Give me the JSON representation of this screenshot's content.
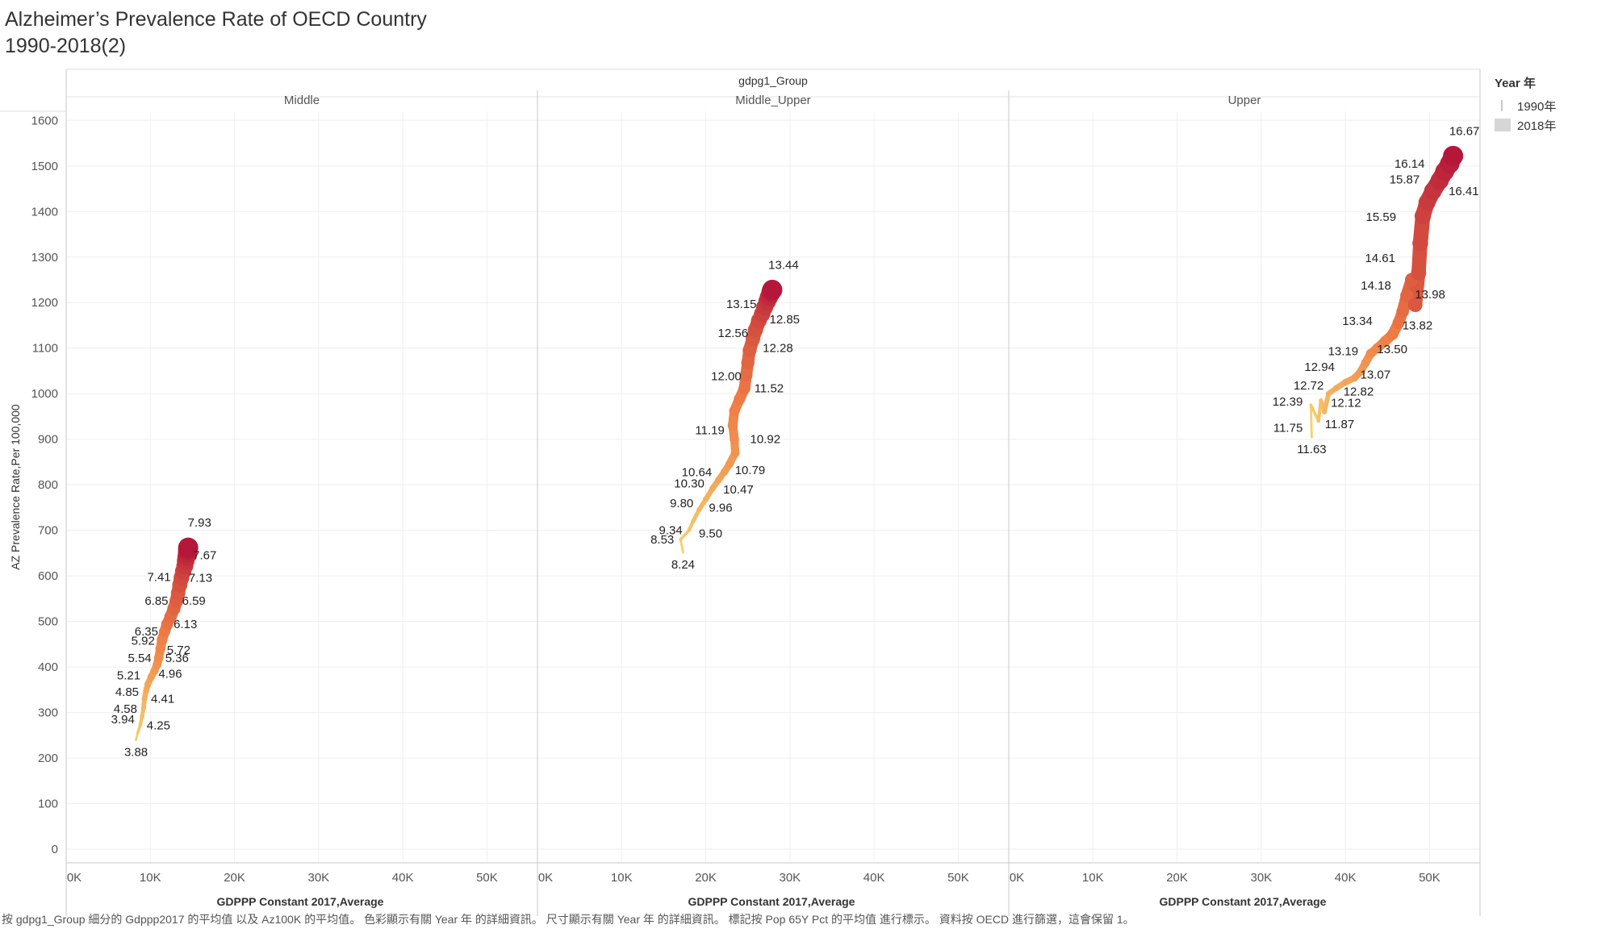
{
  "title_line1": "Alzheimer’s Prevalence Rate of OECD Country",
  "title_line2": "1990-2018(2)",
  "legend": {
    "title": "Year 年",
    "items": [
      "1990年",
      "2018年"
    ]
  },
  "footer": "按 gdpg1_Group 細分的 Gdppp2017 的平均值 以及 Az100K 的平均值。 色彩顯示有關 Year 年 的詳細資訊。 尺寸顯示有關 Year 年 的詳細資訊。 標記按 Pop 65Y Pct 的平均值 進行標示。 資料按 OECD 進行篩選，這會保留 1。",
  "chart_data": {
    "type": "scatter",
    "column_header": "gdpg1_Group",
    "xlabel": "GDPPP Constant 2017,Average",
    "ylabel": "AZ Prevalence Rate,Per 100,000",
    "x_ticks": [
      "0K",
      "10K",
      "20K",
      "30K",
      "40K",
      "50K"
    ],
    "xlim": [
      0,
      56000
    ],
    "y_ticks": [
      0,
      100,
      200,
      300,
      400,
      500,
      600,
      700,
      800,
      900,
      1000,
      1100,
      1200,
      1300,
      1400,
      1500,
      1600
    ],
    "ylim": [
      -30,
      1620
    ],
    "years": [
      1990,
      2018
    ],
    "color_low": "#f5d06f",
    "color_mid": "#ee7a44",
    "color_high": "#b5173a",
    "panels": [
      {
        "name": "Middle",
        "series": [
          {
            "year": 1990,
            "x": 8300,
            "y": 240
          },
          {
            "year": 1991,
            "x": 8500,
            "y": 255
          },
          {
            "year": 1992,
            "x": 8800,
            "y": 272
          },
          {
            "year": 1993,
            "x": 9000,
            "y": 290
          },
          {
            "year": 1994,
            "x": 9200,
            "y": 310
          },
          {
            "year": 1995,
            "x": 9300,
            "y": 330
          },
          {
            "year": 1996,
            "x": 9500,
            "y": 348
          },
          {
            "year": 1997,
            "x": 9700,
            "y": 362
          },
          {
            "year": 1998,
            "x": 10100,
            "y": 378
          },
          {
            "year": 1999,
            "x": 10500,
            "y": 392
          },
          {
            "year": 2000,
            "x": 10800,
            "y": 405
          },
          {
            "year": 2001,
            "x": 11000,
            "y": 420
          },
          {
            "year": 2002,
            "x": 11200,
            "y": 440
          },
          {
            "year": 2003,
            "x": 11400,
            "y": 460
          },
          {
            "year": 2004,
            "x": 11700,
            "y": 478
          },
          {
            "year": 2005,
            "x": 12000,
            "y": 494
          },
          {
            "year": 2006,
            "x": 12400,
            "y": 510
          },
          {
            "year": 2007,
            "x": 12800,
            "y": 528
          },
          {
            "year": 2008,
            "x": 13100,
            "y": 545
          },
          {
            "year": 2009,
            "x": 13300,
            "y": 562
          },
          {
            "year": 2010,
            "x": 13500,
            "y": 580
          },
          {
            "year": 2011,
            "x": 13700,
            "y": 596
          },
          {
            "year": 2012,
            "x": 13900,
            "y": 610
          },
          {
            "year": 2013,
            "x": 14100,
            "y": 622
          },
          {
            "year": 2014,
            "x": 14200,
            "y": 633
          },
          {
            "year": 2015,
            "x": 14300,
            "y": 642
          },
          {
            "year": 2016,
            "x": 14400,
            "y": 650
          },
          {
            "year": 2017,
            "x": 14450,
            "y": 657
          },
          {
            "year": 2018,
            "x": 14500,
            "y": 662
          }
        ],
        "labels": [
          {
            "text": "3.88",
            "x": 8300,
            "y": 240,
            "side": "below"
          },
          {
            "text": "4.25",
            "x": 8800,
            "y": 272,
            "side": "right"
          },
          {
            "text": "3.94",
            "x": 8900,
            "y": 285,
            "side": "left"
          },
          {
            "text": "4.41",
            "x": 9300,
            "y": 330,
            "side": "right"
          },
          {
            "text": "4.58",
            "x": 9200,
            "y": 308,
            "side": "left"
          },
          {
            "text": "4.85",
            "x": 9400,
            "y": 345,
            "side": "left"
          },
          {
            "text": "4.96",
            "x": 10200,
            "y": 385,
            "side": "right"
          },
          {
            "text": "5.21",
            "x": 9600,
            "y": 382,
            "side": "left"
          },
          {
            "text": "5.36",
            "x": 11000,
            "y": 420,
            "side": "right"
          },
          {
            "text": "5.54",
            "x": 10900,
            "y": 420,
            "side": "left"
          },
          {
            "text": "5.72",
            "x": 11200,
            "y": 437,
            "side": "right"
          },
          {
            "text": "5.92",
            "x": 11300,
            "y": 458,
            "side": "left"
          },
          {
            "text": "6.13",
            "x": 12000,
            "y": 494,
            "side": "right"
          },
          {
            "text": "6.35",
            "x": 11700,
            "y": 478,
            "side": "left"
          },
          {
            "text": "6.59",
            "x": 13000,
            "y": 545,
            "side": "right"
          },
          {
            "text": "6.85",
            "x": 12900,
            "y": 545,
            "side": "left"
          },
          {
            "text": "7.13",
            "x": 13800,
            "y": 596,
            "side": "right"
          },
          {
            "text": "7.41",
            "x": 13200,
            "y": 598,
            "side": "left"
          },
          {
            "text": "7.67",
            "x": 14300,
            "y": 645,
            "side": "right"
          },
          {
            "text": "7.93",
            "x": 14500,
            "y": 662,
            "side": "above"
          }
        ]
      },
      {
        "name": "Middle_Upper",
        "series": [
          {
            "year": 1990,
            "x": 17300,
            "y": 652
          },
          {
            "year": 1991,
            "x": 17000,
            "y": 680
          },
          {
            "year": 1992,
            "x": 18000,
            "y": 700
          },
          {
            "year": 1993,
            "x": 18500,
            "y": 720
          },
          {
            "year": 1994,
            "x": 19200,
            "y": 745
          },
          {
            "year": 1995,
            "x": 20000,
            "y": 768
          },
          {
            "year": 1996,
            "x": 20800,
            "y": 792
          },
          {
            "year": 1997,
            "x": 21500,
            "y": 810
          },
          {
            "year": 1998,
            "x": 22200,
            "y": 828
          },
          {
            "year": 1999,
            "x": 22800,
            "y": 845
          },
          {
            "year": 2000,
            "x": 23500,
            "y": 870
          },
          {
            "year": 2001,
            "x": 23400,
            "y": 900
          },
          {
            "year": 2002,
            "x": 23200,
            "y": 930
          },
          {
            "year": 2003,
            "x": 23400,
            "y": 962
          },
          {
            "year": 2004,
            "x": 24000,
            "y": 988
          },
          {
            "year": 2005,
            "x": 24600,
            "y": 1012
          },
          {
            "year": 2006,
            "x": 24800,
            "y": 1040
          },
          {
            "year": 2007,
            "x": 25000,
            "y": 1068
          },
          {
            "year": 2008,
            "x": 25200,
            "y": 1095
          },
          {
            "year": 2009,
            "x": 25600,
            "y": 1120
          },
          {
            "year": 2010,
            "x": 25900,
            "y": 1140
          },
          {
            "year": 2011,
            "x": 26300,
            "y": 1160
          },
          {
            "year": 2012,
            "x": 26700,
            "y": 1175
          },
          {
            "year": 2013,
            "x": 27000,
            "y": 1190
          },
          {
            "year": 2014,
            "x": 27300,
            "y": 1203
          },
          {
            "year": 2015,
            "x": 27500,
            "y": 1212
          },
          {
            "year": 2016,
            "x": 27700,
            "y": 1220
          },
          {
            "year": 2017,
            "x": 27800,
            "y": 1225
          },
          {
            "year": 2018,
            "x": 27900,
            "y": 1228
          }
        ],
        "labels": [
          {
            "text": "8.24",
            "x": 17300,
            "y": 652,
            "side": "below"
          },
          {
            "text": "8.53",
            "x": 17000,
            "y": 680,
            "side": "left"
          },
          {
            "text": "9.34",
            "x": 18000,
            "y": 700,
            "side": "left"
          },
          {
            "text": "9.50",
            "x": 18400,
            "y": 693,
            "side": "right"
          },
          {
            "text": "9.80",
            "x": 19300,
            "y": 760,
            "side": "left"
          },
          {
            "text": "9.96",
            "x": 19600,
            "y": 750,
            "side": "right"
          },
          {
            "text": "10.30",
            "x": 20600,
            "y": 803,
            "side": "left"
          },
          {
            "text": "10.47",
            "x": 21300,
            "y": 790,
            "side": "right"
          },
          {
            "text": "10.64",
            "x": 21500,
            "y": 828,
            "side": "left"
          },
          {
            "text": "10.79",
            "x": 22700,
            "y": 832,
            "side": "right"
          },
          {
            "text": "11.19",
            "x": 23000,
            "y": 920,
            "side": "left"
          },
          {
            "text": "10.92",
            "x": 24500,
            "y": 900,
            "side": "right"
          },
          {
            "text": "11.52",
            "x": 25000,
            "y": 1012,
            "side": "right"
          },
          {
            "text": "12.00",
            "x": 25000,
            "y": 1038,
            "side": "left"
          },
          {
            "text": "12.28",
            "x": 26000,
            "y": 1100,
            "side": "right"
          },
          {
            "text": "12.56",
            "x": 25800,
            "y": 1133,
            "side": "left"
          },
          {
            "text": "12.85",
            "x": 26800,
            "y": 1163,
            "side": "right"
          },
          {
            "text": "13.15",
            "x": 26800,
            "y": 1197,
            "side": "left"
          },
          {
            "text": "13.44",
            "x": 27900,
            "y": 1228,
            "side": "above"
          }
        ]
      },
      {
        "name": "Upper",
        "series": [
          {
            "year": 1990,
            "x": 36000,
            "y": 905
          },
          {
            "year": 1991,
            "x": 35900,
            "y": 975
          },
          {
            "year": 1992,
            "x": 36800,
            "y": 940
          },
          {
            "year": 1993,
            "x": 37100,
            "y": 985
          },
          {
            "year": 1994,
            "x": 37500,
            "y": 960
          },
          {
            "year": 1995,
            "x": 38000,
            "y": 1000
          },
          {
            "year": 1996,
            "x": 38900,
            "y": 1012
          },
          {
            "year": 1997,
            "x": 40000,
            "y": 1025
          },
          {
            "year": 1998,
            "x": 41100,
            "y": 1035
          },
          {
            "year": 1999,
            "x": 41800,
            "y": 1048
          },
          {
            "year": 2000,
            "x": 42400,
            "y": 1068
          },
          {
            "year": 2001,
            "x": 43000,
            "y": 1088
          },
          {
            "year": 2002,
            "x": 43800,
            "y": 1100
          },
          {
            "year": 2003,
            "x": 44700,
            "y": 1115
          },
          {
            "year": 2004,
            "x": 45600,
            "y": 1130
          },
          {
            "year": 2005,
            "x": 46300,
            "y": 1155
          },
          {
            "year": 2006,
            "x": 46800,
            "y": 1180
          },
          {
            "year": 2007,
            "x": 47300,
            "y": 1215
          },
          {
            "year": 2008,
            "x": 47900,
            "y": 1250
          },
          {
            "year": 2009,
            "x": 48300,
            "y": 1195
          },
          {
            "year": 2010,
            "x": 48700,
            "y": 1265
          },
          {
            "year": 2011,
            "x": 48900,
            "y": 1330
          },
          {
            "year": 2012,
            "x": 49200,
            "y": 1390
          },
          {
            "year": 2013,
            "x": 49700,
            "y": 1420
          },
          {
            "year": 2014,
            "x": 50400,
            "y": 1445
          },
          {
            "year": 2015,
            "x": 51200,
            "y": 1468
          },
          {
            "year": 2016,
            "x": 51800,
            "y": 1488
          },
          {
            "year": 2017,
            "x": 52400,
            "y": 1505
          },
          {
            "year": 2018,
            "x": 52800,
            "y": 1522
          }
        ],
        "labels": [
          {
            "text": "11.63",
            "x": 36000,
            "y": 905,
            "side": "below"
          },
          {
            "text": "11.75",
            "x": 35700,
            "y": 925,
            "side": "left"
          },
          {
            "text": "11.87",
            "x": 36800,
            "y": 933,
            "side": "right"
          },
          {
            "text": "12.39",
            "x": 35700,
            "y": 983,
            "side": "left"
          },
          {
            "text": "12.12",
            "x": 37500,
            "y": 980,
            "side": "right"
          },
          {
            "text": "12.72",
            "x": 38200,
            "y": 1018,
            "side": "left"
          },
          {
            "text": "12.82",
            "x": 39000,
            "y": 1005,
            "side": "right"
          },
          {
            "text": "12.94",
            "x": 39500,
            "y": 1059,
            "side": "left"
          },
          {
            "text": "13.07",
            "x": 41000,
            "y": 1042,
            "side": "right"
          },
          {
            "text": "13.19",
            "x": 42300,
            "y": 1093,
            "side": "left"
          },
          {
            "text": "13.50",
            "x": 43000,
            "y": 1098,
            "side": "right"
          },
          {
            "text": "13.34",
            "x": 44000,
            "y": 1160,
            "side": "left"
          },
          {
            "text": "13.82",
            "x": 46000,
            "y": 1150,
            "side": "right"
          },
          {
            "text": "13.98",
            "x": 47500,
            "y": 1218,
            "side": "right"
          },
          {
            "text": "14.18",
            "x": 46200,
            "y": 1238,
            "side": "left"
          },
          {
            "text": "14.61",
            "x": 46700,
            "y": 1298,
            "side": "left"
          },
          {
            "text": "15.59",
            "x": 46800,
            "y": 1388,
            "side": "left"
          },
          {
            "text": "15.87",
            "x": 49600,
            "y": 1470,
            "side": "left"
          },
          {
            "text": "16.14",
            "x": 50200,
            "y": 1505,
            "side": "left"
          },
          {
            "text": "16.41",
            "x": 51500,
            "y": 1445,
            "side": "right"
          },
          {
            "text": "16.67",
            "x": 52800,
            "y": 1522,
            "side": "above"
          }
        ]
      }
    ]
  }
}
